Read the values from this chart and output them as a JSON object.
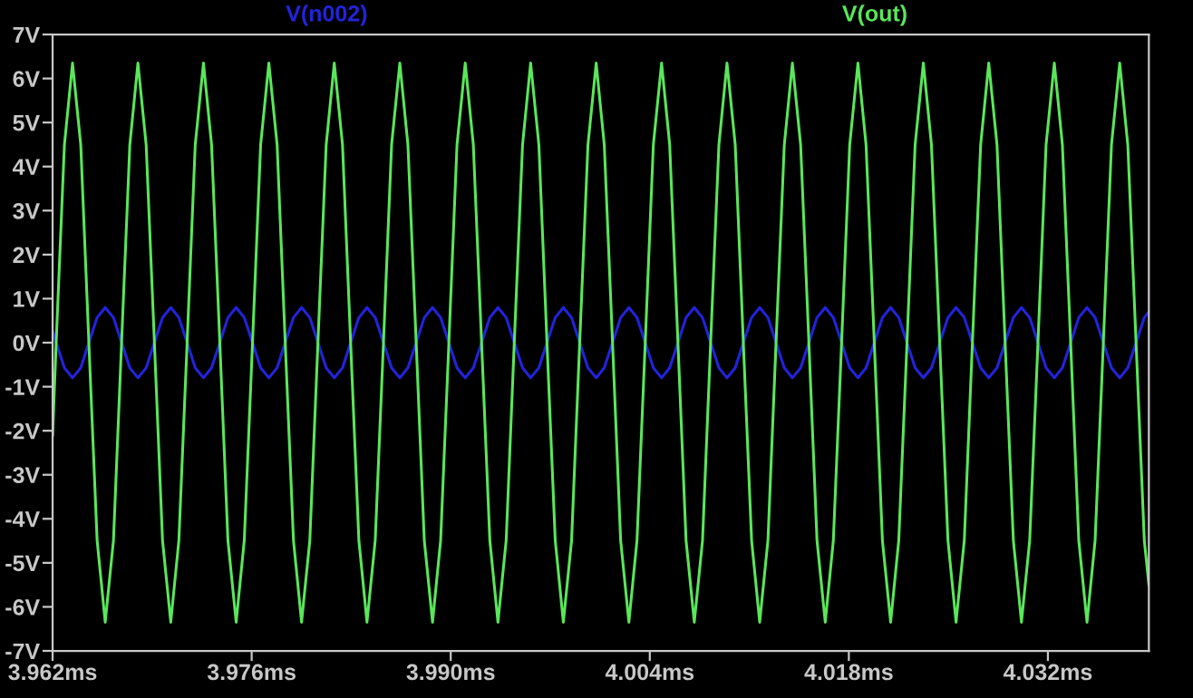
{
  "chart_data": {
    "type": "line",
    "x": [
      3.962,
      3.96225,
      3.96283,
      3.9634,
      3.96398,
      3.96455,
      3.96513,
      3.9657,
      3.96628,
      3.96685,
      3.96743,
      3.968,
      3.96858,
      3.96916,
      3.96973,
      3.97031,
      3.97088,
      3.97146,
      3.97203,
      3.97261,
      3.97318,
      3.97376,
      3.97433,
      3.97491,
      3.97548,
      3.97606,
      3.97663,
      3.97721,
      3.97779,
      3.97836,
      3.97894,
      3.97951,
      3.98009,
      3.98066,
      3.98124,
      3.98181,
      3.98239,
      3.98296,
      3.98354,
      3.98411,
      3.98469,
      3.98527,
      3.98584,
      3.98642,
      3.98699,
      3.98757,
      3.98814,
      3.98872,
      3.98929,
      3.98987,
      3.99044,
      3.99102,
      3.99159,
      3.99217,
      3.99275,
      3.99332,
      3.9939,
      3.99447,
      3.99505,
      3.99562,
      3.9962,
      3.99677,
      3.99735,
      3.99792,
      3.9985,
      3.99907,
      3.99965,
      4.00023,
      4.0008,
      4.00138,
      4.00195,
      4.00253,
      4.0031,
      4.00368,
      4.00425,
      4.00483,
      4.0054,
      4.00598,
      4.00655,
      4.00713,
      4.00771,
      4.00828,
      4.00886,
      4.00943,
      4.01001,
      4.01058,
      4.01116,
      4.01173,
      4.01231,
      4.01288,
      4.01346,
      4.01403,
      4.01461,
      4.01519,
      4.01576,
      4.01634,
      4.01691,
      4.01749,
      4.01806,
      4.01864,
      4.01921,
      4.01979,
      4.02036,
      4.02094,
      4.02151,
      4.02209,
      4.02266,
      4.02324,
      4.02381,
      4.02439,
      4.02497,
      4.02554,
      4.02612,
      4.02669,
      4.02727,
      4.02784,
      4.02842,
      4.02899,
      4.02957,
      4.03014,
      4.03072,
      4.0313,
      4.03187,
      4.03245,
      4.03302,
      4.0336,
      4.03417,
      4.03475,
      4.03532,
      4.0359,
      4.03647,
      4.03705,
      4.03762,
      4.0382,
      4.03878,
      4.0391
    ],
    "series": [
      {
        "name": "V(n002)",
        "color": "#2323dc",
        "values": [
          0.27,
          0,
          -0.57,
          -0.8,
          -0.57,
          0,
          0.57,
          0.8,
          0.57,
          0,
          -0.57,
          -0.8,
          -0.57,
          0,
          0.57,
          0.8,
          0.57,
          0,
          -0.57,
          -0.8,
          -0.57,
          0,
          0.57,
          0.8,
          0.57,
          0,
          -0.57,
          -0.8,
          -0.57,
          0,
          0.57,
          0.8,
          0.57,
          0,
          -0.57,
          -0.8,
          -0.57,
          0,
          0.57,
          0.8,
          0.57,
          0,
          -0.57,
          -0.8,
          -0.57,
          0,
          0.57,
          0.8,
          0.57,
          0,
          -0.57,
          -0.8,
          -0.57,
          0,
          0.57,
          0.8,
          0.57,
          0,
          -0.57,
          -0.8,
          -0.57,
          0,
          0.57,
          0.8,
          0.57,
          0,
          -0.57,
          -0.8,
          -0.57,
          0,
          0.57,
          0.8,
          0.57,
          0,
          -0.57,
          -0.8,
          -0.57,
          0,
          0.57,
          0.8,
          0.57,
          0,
          -0.57,
          -0.8,
          -0.57,
          0,
          0.57,
          0.8,
          0.57,
          0,
          -0.57,
          -0.8,
          -0.57,
          0,
          0.57,
          0.8,
          0.57,
          0,
          -0.57,
          -0.8,
          -0.57,
          0,
          0.57,
          0.8,
          0.57,
          0,
          -0.57,
          -0.8,
          -0.57,
          0,
          0.57,
          0.8,
          0.57,
          0,
          -0.57,
          -0.8,
          -0.57,
          0,
          0.57,
          0.8,
          0.57,
          0,
          -0.57,
          -0.8,
          -0.57,
          0,
          0.57,
          0.8,
          0.57,
          0,
          -0.57,
          -0.8,
          -0.57,
          0,
          0.57,
          0.7
        ]
      },
      {
        "name": "V(out)",
        "color": "#5ae65a",
        "values": [
          -2.1,
          0,
          4.49,
          6.35,
          4.49,
          0,
          -4.49,
          -6.35,
          -4.49,
          0,
          4.49,
          6.35,
          4.49,
          0,
          -4.49,
          -6.35,
          -4.49,
          0,
          4.49,
          6.35,
          4.49,
          0,
          -4.49,
          -6.35,
          -4.49,
          0,
          4.49,
          6.35,
          4.49,
          0,
          -4.49,
          -6.35,
          -4.49,
          0,
          4.49,
          6.35,
          4.49,
          0,
          -4.49,
          -6.35,
          -4.49,
          0,
          4.49,
          6.35,
          4.49,
          0,
          -4.49,
          -6.35,
          -4.49,
          0,
          4.49,
          6.35,
          4.49,
          0,
          -4.49,
          -6.35,
          -4.49,
          0,
          4.49,
          6.35,
          4.49,
          0,
          -4.49,
          -6.35,
          -4.49,
          0,
          4.49,
          6.35,
          4.49,
          0,
          -4.49,
          -6.35,
          -4.49,
          0,
          4.49,
          6.35,
          4.49,
          0,
          -4.49,
          -6.35,
          -4.49,
          0,
          4.49,
          6.35,
          4.49,
          0,
          -4.49,
          -6.35,
          -4.49,
          0,
          4.49,
          6.35,
          4.49,
          0,
          -4.49,
          -6.35,
          -4.49,
          0,
          4.49,
          6.35,
          4.49,
          0,
          -4.49,
          -6.35,
          -4.49,
          0,
          4.49,
          6.35,
          4.49,
          0,
          -4.49,
          -6.35,
          -4.49,
          0,
          4.49,
          6.35,
          4.49,
          0,
          -4.49,
          -6.35,
          -4.49,
          0,
          4.49,
          6.35,
          4.49,
          0,
          -4.49,
          -6.35,
          -4.49,
          0,
          4.49,
          6.35,
          4.49,
          0,
          -4.49,
          -5.5
        ]
      }
    ],
    "xlim": [
      3.962,
      4.0391
    ],
    "ylim": [
      -7,
      7
    ],
    "xticks": [
      {
        "value": 3.962,
        "label": "3.962ms"
      },
      {
        "value": 3.976,
        "label": "3.976ms"
      },
      {
        "value": 3.99,
        "label": "3.990ms"
      },
      {
        "value": 4.004,
        "label": "4.004ms"
      },
      {
        "value": 4.018,
        "label": "4.018ms"
      },
      {
        "value": 4.032,
        "label": "4.032ms"
      }
    ],
    "yticks": [
      {
        "value": -7,
        "label": "-7V"
      },
      {
        "value": -6,
        "label": "-6V"
      },
      {
        "value": -5,
        "label": "-5V"
      },
      {
        "value": -4,
        "label": "-4V"
      },
      {
        "value": -3,
        "label": "-3V"
      },
      {
        "value": -2,
        "label": "-2V"
      },
      {
        "value": -1,
        "label": "-1V"
      },
      {
        "value": 0,
        "label": "0V"
      },
      {
        "value": 1,
        "label": "1V"
      },
      {
        "value": 2,
        "label": "2V"
      },
      {
        "value": 3,
        "label": "3V"
      },
      {
        "value": 4,
        "label": "4V"
      },
      {
        "value": 5,
        "label": "5V"
      },
      {
        "value": 6,
        "label": "6V"
      },
      {
        "value": 7,
        "label": "7V"
      }
    ],
    "legend": "top",
    "line_style": "solid",
    "marker": "none"
  }
}
